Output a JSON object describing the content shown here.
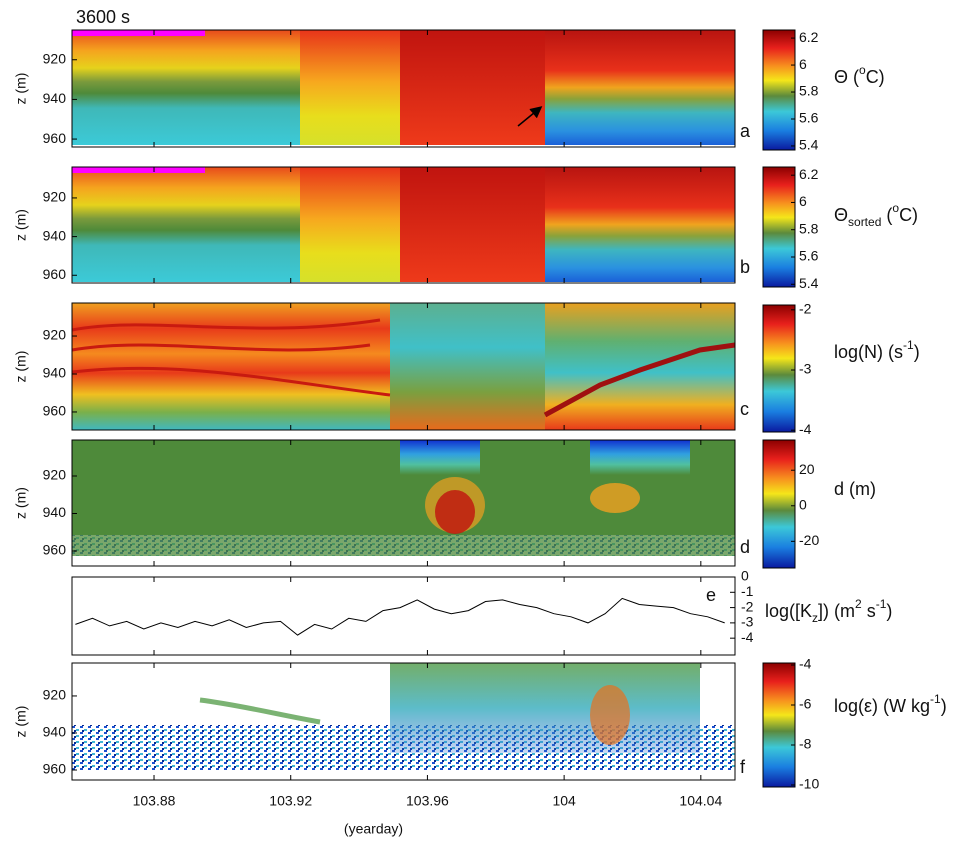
{
  "chart_data": [
    {
      "type": "heatmap",
      "annotation": "3600 s",
      "ylabel": "z (m)",
      "xlim": [
        103.856,
        104.05
      ],
      "xticks": [
        103.88,
        103.92,
        103.96,
        104,
        104.04
      ],
      "ylim": [
        964,
        905
      ],
      "yticks": [
        920,
        940,
        960
      ],
      "clim": [
        5.37,
        6.26
      ],
      "cticks": [
        6.2,
        6,
        5.8,
        5.6,
        5.4
      ],
      "colorbar_label": [
        {
          "text": "Θ ("
        },
        {
          "text": "o",
          "style": "sup"
        },
        {
          "text": "C)"
        }
      ],
      "panel_label": "a"
    },
    {
      "type": "heatmap",
      "ylabel": "z (m)",
      "xlim": [
        103.856,
        104.05
      ],
      "xticks": [
        103.88,
        103.92,
        103.96,
        104,
        104.04
      ],
      "ylim": [
        964,
        904
      ],
      "yticks": [
        920,
        940,
        960
      ],
      "clim": [
        5.38,
        6.26
      ],
      "cticks": [
        6.2,
        6,
        5.8,
        5.6,
        5.4
      ],
      "colorbar_label": [
        {
          "text": "Θ"
        },
        {
          "text": "sorted",
          "style": "sub"
        },
        {
          "text": " ("
        },
        {
          "text": "o",
          "style": "sup"
        },
        {
          "text": "C)"
        }
      ],
      "panel_label": "b"
    },
    {
      "type": "heatmap",
      "ylabel": "z (m)",
      "xlim": [
        103.856,
        104.05
      ],
      "xticks": [
        103.88,
        103.92,
        103.96,
        104,
        104.04
      ],
      "ylim": [
        969.5,
        902.6
      ],
      "yticks": [
        920,
        940,
        960
      ],
      "clim": [
        -4.03,
        -1.92
      ],
      "cticks": [
        -2,
        -3,
        -4
      ],
      "colorbar_label": [
        {
          "text": "log(N) (s"
        },
        {
          "text": "-1",
          "style": "sup"
        },
        {
          "text": ")"
        }
      ],
      "panel_label": "c"
    },
    {
      "type": "heatmap",
      "ylabel": "z (m)",
      "xlim": [
        103.856,
        104.05
      ],
      "xticks": [
        103.88,
        103.92,
        103.96,
        104,
        104.04
      ],
      "ylim": [
        968,
        900.8
      ],
      "yticks": [
        920,
        940,
        960
      ],
      "clim": [
        -35,
        37
      ],
      "cticks": [
        20,
        0,
        -20
      ],
      "colorbar_label": [
        {
          "text": "d (m)"
        }
      ],
      "panel_label": "d"
    },
    {
      "type": "line",
      "color": "#000000",
      "xlim": [
        103.856,
        104.05
      ],
      "xticks": [
        103.88,
        103.92,
        103.96,
        104,
        104.04
      ],
      "ylim": [
        -5.1,
        0
      ],
      "yticks": [
        0,
        -1,
        -2,
        -3,
        -4
      ],
      "ylabel": [
        {
          "text": "log([K"
        },
        {
          "text": "z",
          "style": "sub"
        },
        {
          "text": "]) (m"
        },
        {
          "text": "2",
          "style": "sup"
        },
        {
          "text": " s"
        },
        {
          "text": "-1",
          "style": "sup"
        },
        {
          "text": ")"
        }
      ],
      "x": [
        103.857,
        103.862,
        103.867,
        103.872,
        103.877,
        103.882,
        103.887,
        103.892,
        103.897,
        103.902,
        103.907,
        103.912,
        103.917,
        103.922,
        103.927,
        103.932,
        103.937,
        103.942,
        103.947,
        103.952,
        103.957,
        103.962,
        103.967,
        103.972,
        103.977,
        103.982,
        103.987,
        103.992,
        103.997,
        104.002,
        104.007,
        104.012,
        104.017,
        104.022,
        104.027,
        104.032,
        104.037,
        104.042,
        104.047
      ],
      "values": [
        -3.1,
        -2.7,
        -3.2,
        -2.9,
        -3.4,
        -3.0,
        -3.3,
        -2.9,
        -3.2,
        -2.8,
        -3.3,
        -3.0,
        -2.9,
        -3.8,
        -3.1,
        -3.4,
        -2.7,
        -2.9,
        -2.2,
        -2.0,
        -1.5,
        -2.1,
        -2.4,
        -2.2,
        -1.6,
        -1.5,
        -1.8,
        -2.0,
        -2.4,
        -2.6,
        -3.0,
        -2.4,
        -1.4,
        -1.8,
        -1.9,
        -2.0,
        -2.4,
        -2.6,
        -3.0
      ],
      "panel_label": "e"
    },
    {
      "type": "heatmap",
      "ylabel": "z (m)",
      "xlabel": "(yearday)",
      "xlim": [
        103.856,
        104.05
      ],
      "xticks": [
        103.88,
        103.92,
        103.96,
        104,
        104.04
      ],
      "ylim": [
        965.4,
        902.2
      ],
      "yticks": [
        920,
        940,
        960
      ],
      "clim": [
        -10.1,
        -3.9
      ],
      "cticks": [
        -4,
        -6,
        -8,
        -10
      ],
      "colorbar_label": [
        {
          "text": "log(ε) (W kg"
        },
        {
          "text": "-1",
          "style": "sup"
        },
        {
          "text": ")"
        }
      ],
      "panel_label": "f"
    }
  ]
}
